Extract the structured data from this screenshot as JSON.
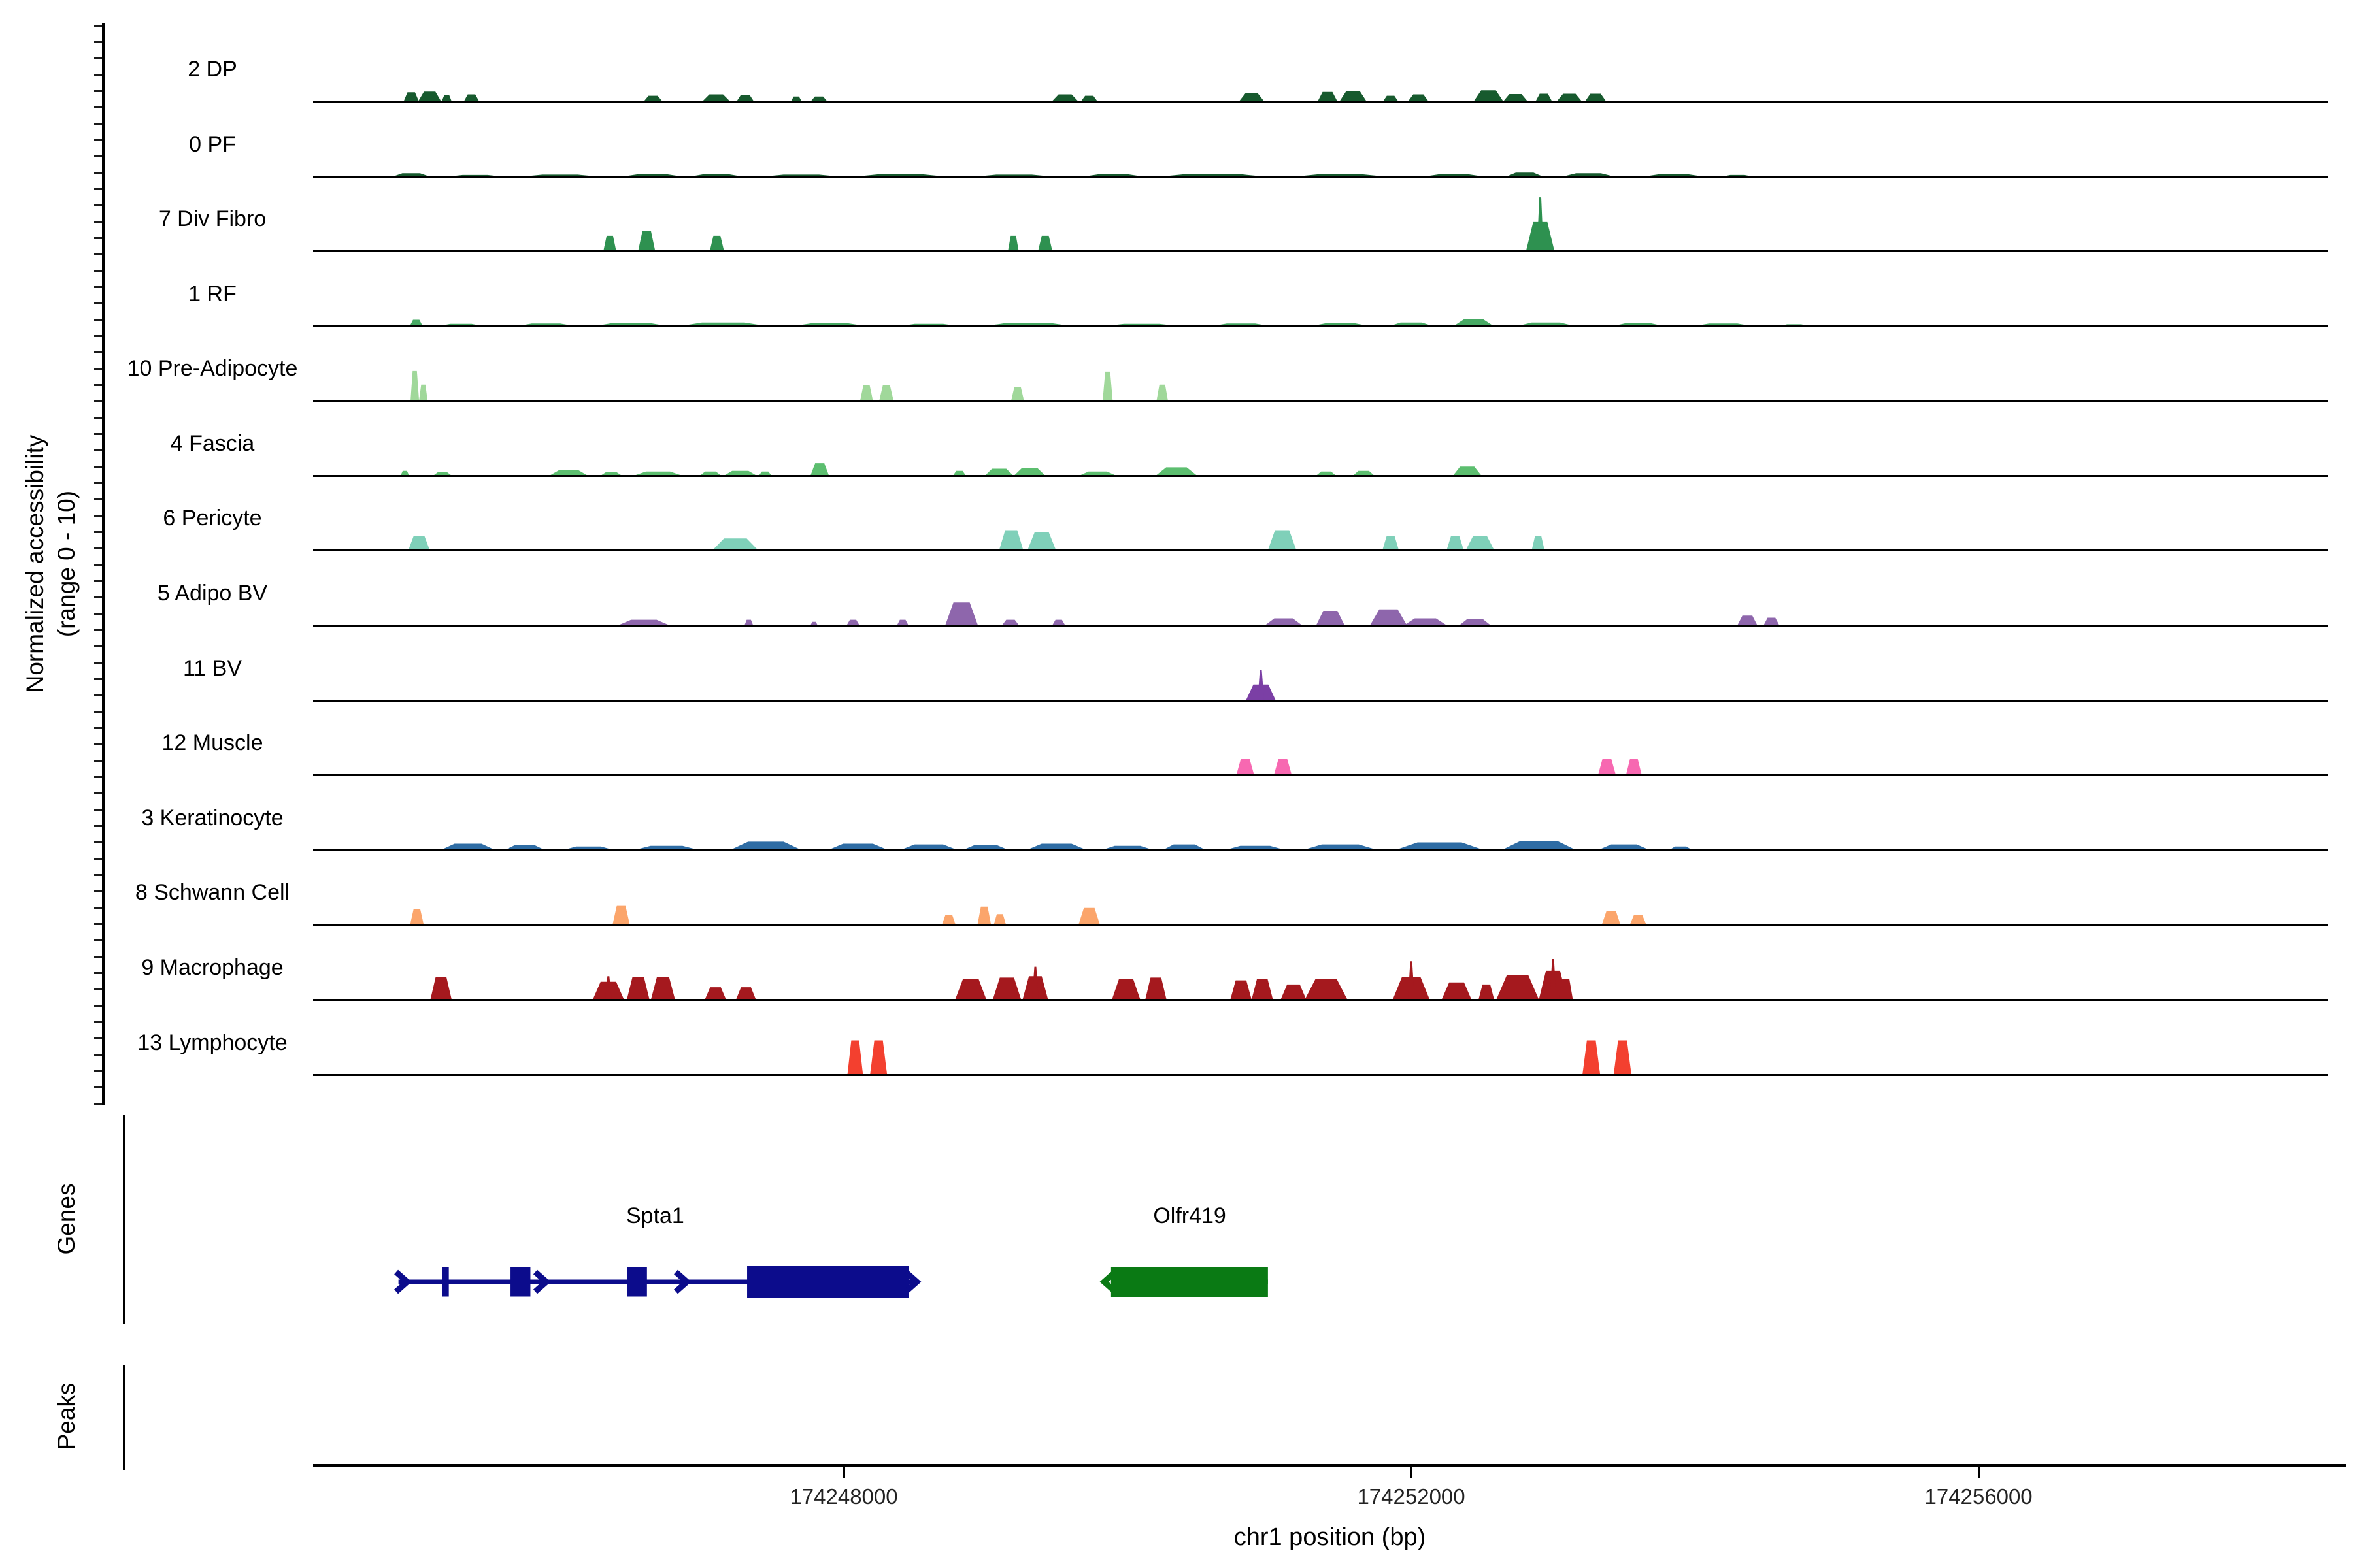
{
  "y_axis": {
    "label_line1": "Normalized accessibility",
    "label_line2": "(range 0 - 10)"
  },
  "x_axis": {
    "title": "chr1 position (bp)",
    "ticks": [
      {
        "bp": 174248000,
        "label": "174248000"
      },
      {
        "bp": 174252000,
        "label": "174252000"
      },
      {
        "bp": 174256000,
        "label": "174256000"
      }
    ]
  },
  "side_labels": {
    "genes": "Genes",
    "peaks": "Peaks"
  },
  "chart_data": {
    "type": "area",
    "title": "",
    "xlabel": "chr1 position (bp)",
    "ylabel": "Normalized accessibility (range 0 - 10)",
    "x_range_bp": [
      174244258,
      174258465
    ],
    "x_tick_values": [
      174248000,
      174252000,
      174256000
    ],
    "y_range_per_track": [
      0,
      10
    ],
    "grid": false,
    "legend_position": "none",
    "tracks": [
      {
        "label": "2 DP",
        "color": "#175A2E",
        "peaks": [
          [
            174244950,
            106,
            1.3
          ],
          [
            174245080,
            161,
            1.4
          ],
          [
            174245200,
            69,
            0.9
          ],
          [
            174245375,
            106,
            1.0
          ],
          [
            174246655,
            129,
            0.8
          ],
          [
            174247100,
            193,
            1.0
          ],
          [
            174247305,
            120,
            0.95
          ],
          [
            174247665,
            74,
            0.7
          ],
          [
            174247825,
            115,
            0.7
          ],
          [
            174249560,
            184,
            1.0
          ],
          [
            174249730,
            115,
            0.8
          ],
          [
            174250875,
            175,
            1.15
          ],
          [
            174251410,
            138,
            1.35
          ],
          [
            174251590,
            189,
            1.5
          ],
          [
            174251855,
            106,
            0.8
          ],
          [
            174252050,
            143,
            1.0
          ],
          [
            174252545,
            207,
            1.6
          ],
          [
            174252735,
            170,
            1.05
          ],
          [
            174252935,
            115,
            1.1
          ],
          [
            174253115,
            175,
            1.1
          ],
          [
            174253300,
            147,
            1.1
          ]
        ]
      },
      {
        "label": "0 PF",
        "color": "#175A2E",
        "peaks": [
          [
            174244950,
            250,
            0.45
          ],
          [
            174245400,
            350,
            0.2
          ],
          [
            174246000,
            500,
            0.25
          ],
          [
            174246650,
            400,
            0.3
          ],
          [
            174247100,
            350,
            0.3
          ],
          [
            174247700,
            500,
            0.25
          ],
          [
            174248400,
            600,
            0.3
          ],
          [
            174249200,
            500,
            0.25
          ],
          [
            174249900,
            400,
            0.3
          ],
          [
            174250600,
            700,
            0.35
          ],
          [
            174251500,
            600,
            0.3
          ],
          [
            174252300,
            400,
            0.3
          ],
          [
            174252800,
            250,
            0.55
          ],
          [
            174253250,
            350,
            0.45
          ],
          [
            174253850,
            400,
            0.3
          ],
          [
            174254300,
            200,
            0.2
          ]
        ]
      },
      {
        "label": "7 Div Fibro",
        "color": "#2E9150",
        "peaks": [
          [
            174246350,
            90,
            2.2
          ],
          [
            174246610,
            120,
            2.9
          ],
          [
            174247105,
            100,
            2.2
          ],
          [
            174249195,
            75,
            2.2
          ],
          [
            174249420,
            100,
            2.2
          ],
          [
            174252910,
            200,
            4.2,
            7.8
          ]
        ]
      },
      {
        "label": "1 RF",
        "color": "#46A963",
        "peaks": [
          [
            174244985,
            90,
            0.9
          ],
          [
            174245300,
            300,
            0.3
          ],
          [
            174245900,
            400,
            0.35
          ],
          [
            174246500,
            500,
            0.45
          ],
          [
            174247150,
            600,
            0.5
          ],
          [
            174247900,
            500,
            0.4
          ],
          [
            174248600,
            400,
            0.3
          ],
          [
            174249300,
            600,
            0.45
          ],
          [
            174250100,
            500,
            0.3
          ],
          [
            174250800,
            400,
            0.35
          ],
          [
            174251500,
            400,
            0.4
          ],
          [
            174252000,
            300,
            0.5
          ],
          [
            174252440,
            280,
            0.95
          ],
          [
            174252950,
            400,
            0.5
          ],
          [
            174253600,
            350,
            0.4
          ],
          [
            174254200,
            400,
            0.35
          ],
          [
            174254700,
            200,
            0.25
          ]
        ]
      },
      {
        "label": "10 Pre-Adipocyte",
        "color": "#A0D89A",
        "peaks": [
          [
            174244975,
            60,
            4.3
          ],
          [
            174245035,
            60,
            2.3
          ],
          [
            174248160,
            90,
            2.2
          ],
          [
            174248300,
            100,
            2.2
          ],
          [
            174249225,
            90,
            2.0
          ],
          [
            174249860,
            70,
            4.2
          ],
          [
            174250245,
            80,
            2.3
          ]
        ]
      },
      {
        "label": "4 Fascia",
        "color": "#5CBE6F",
        "peaks": [
          [
            174244905,
            60,
            0.7
          ],
          [
            174245170,
            130,
            0.5
          ],
          [
            174246060,
            270,
            0.8
          ],
          [
            174246360,
            150,
            0.5
          ],
          [
            174246690,
            340,
            0.6
          ],
          [
            174247060,
            150,
            0.6
          ],
          [
            174247270,
            230,
            0.7
          ],
          [
            174247445,
            90,
            0.6
          ],
          [
            174247830,
            130,
            1.8
          ],
          [
            174248815,
            90,
            0.7
          ],
          [
            174249095,
            200,
            1.0
          ],
          [
            174249310,
            220,
            1.1
          ],
          [
            174249790,
            260,
            0.6
          ],
          [
            174250345,
            290,
            1.2
          ],
          [
            174251400,
            140,
            0.6
          ],
          [
            174251665,
            150,
            0.7
          ],
          [
            174252395,
            200,
            1.3
          ]
        ]
      },
      {
        "label": "6 Pericyte",
        "color": "#7FD0B9",
        "peaks": [
          [
            174245005,
            150,
            2.1
          ],
          [
            174247235,
            320,
            1.7
          ],
          [
            174249180,
            170,
            2.9
          ],
          [
            174249395,
            200,
            2.6
          ],
          [
            174251090,
            200,
            2.9
          ],
          [
            174251855,
            115,
            2.0
          ],
          [
            174252310,
            120,
            2.0
          ],
          [
            174252485,
            200,
            2.0
          ],
          [
            174252895,
            90,
            2.0
          ]
        ]
      },
      {
        "label": "5 Adipo BV",
        "color": "#8E66AC",
        "peaks": [
          [
            174246590,
            360,
            0.8
          ],
          [
            174247330,
            60,
            0.8
          ],
          [
            174247790,
            50,
            0.5
          ],
          [
            174248065,
            90,
            0.8
          ],
          [
            174248415,
            80,
            0.8
          ],
          [
            174248830,
            230,
            3.3
          ],
          [
            174249175,
            120,
            0.8
          ],
          [
            174249515,
            90,
            0.8
          ],
          [
            174251100,
            260,
            1.0
          ],
          [
            174251430,
            200,
            2.1
          ],
          [
            174251840,
            260,
            2.3
          ],
          [
            174252100,
            300,
            1.0
          ],
          [
            174252450,
            220,
            0.9
          ],
          [
            174254370,
            140,
            1.4
          ],
          [
            174254540,
            110,
            1.1
          ]
        ]
      },
      {
        "label": "11 BV",
        "color": "#7B3FA5",
        "peaks": [
          [
            174250940,
            210,
            2.3,
            4.4
          ]
        ]
      },
      {
        "label": "12 Muscle",
        "color": "#F768B1",
        "peaks": [
          [
            174250830,
            125,
            2.3
          ],
          [
            174251095,
            125,
            2.3
          ],
          [
            174253380,
            125,
            2.3
          ],
          [
            174253570,
            110,
            2.3
          ]
        ]
      },
      {
        "label": "3 Keratinocyte",
        "color": "#2E6CA4",
        "peaks": [
          [
            174245350,
            380,
            0.9
          ],
          [
            174245750,
            280,
            0.7
          ],
          [
            174246200,
            350,
            0.5
          ],
          [
            174246750,
            450,
            0.6
          ],
          [
            174247450,
            500,
            1.2
          ],
          [
            174248100,
            420,
            0.9
          ],
          [
            174248600,
            400,
            0.8
          ],
          [
            174249000,
            320,
            0.7
          ],
          [
            174249500,
            420,
            0.9
          ],
          [
            174250000,
            360,
            0.6
          ],
          [
            174250400,
            300,
            0.8
          ],
          [
            174250900,
            420,
            0.6
          ],
          [
            174251500,
            520,
            0.8
          ],
          [
            174252200,
            620,
            1.1
          ],
          [
            174252900,
            520,
            1.3
          ],
          [
            174253500,
            360,
            0.8
          ],
          [
            174253900,
            160,
            0.5
          ]
        ]
      },
      {
        "label": "8 Schwann Cell",
        "color": "#FBA56B",
        "peaks": [
          [
            174244990,
            95,
            2.2
          ],
          [
            174246430,
            120,
            2.8
          ],
          [
            174248740,
            95,
            1.4
          ],
          [
            174248990,
            95,
            2.6
          ],
          [
            174249100,
            85,
            1.5
          ],
          [
            174249730,
            150,
            2.4
          ],
          [
            174253410,
            130,
            2.0
          ],
          [
            174253600,
            115,
            1.4
          ]
        ]
      },
      {
        "label": "9 Macrophage",
        "color": "#A5191E",
        "peaks": [
          [
            174245160,
            150,
            3.3
          ],
          [
            174246340,
            220,
            2.6,
            3.4
          ],
          [
            174246550,
            160,
            3.3
          ],
          [
            174246725,
            170,
            3.3
          ],
          [
            174247095,
            150,
            1.8
          ],
          [
            174247310,
            140,
            1.8
          ],
          [
            174248895,
            220,
            3.0
          ],
          [
            174249150,
            200,
            3.2
          ],
          [
            174249350,
            180,
            3.4,
            4.8
          ],
          [
            174249990,
            200,
            3.0
          ],
          [
            174250200,
            150,
            3.2
          ],
          [
            174250800,
            150,
            2.8
          ],
          [
            174250950,
            150,
            3.0
          ],
          [
            174251170,
            180,
            2.2
          ],
          [
            174251400,
            300,
            3.0
          ],
          [
            174252000,
            260,
            3.3,
            5.6
          ],
          [
            174252320,
            210,
            2.5
          ],
          [
            174252530,
            110,
            2.2
          ],
          [
            174252750,
            300,
            3.6
          ],
          [
            174253000,
            200,
            4.2,
            5.9
          ],
          [
            174253090,
            100,
            3.0
          ]
        ]
      },
      {
        "label": "13 Lymphocyte",
        "color": "#F3402F",
        "peaks": [
          [
            174248080,
            110,
            5.0
          ],
          [
            174248245,
            120,
            5.0
          ],
          [
            174253270,
            125,
            5.0
          ],
          [
            174253490,
            125,
            5.0
          ]
        ]
      }
    ],
    "genes": [
      {
        "name": "Spta1",
        "color": "#0C0C8C",
        "strand": "+",
        "start": 174244860,
        "end": 174248485,
        "label_bp": 174246670,
        "exons": [
          [
            174245170,
            174245215,
            45
          ],
          [
            174245650,
            174245790,
            45
          ],
          [
            174246474,
            174246612,
            45
          ],
          [
            174247318,
            174248460,
            50
          ]
        ],
        "chevrons": [
          174244885,
          174245866,
          174246857,
          174248478
        ]
      },
      {
        "name": "Olfr419",
        "color": "#0A7A14",
        "strand": "-",
        "start": 174249884,
        "end": 174250990,
        "label_bp": 174250438,
        "exons": [
          [
            174249884,
            174250990,
            46
          ]
        ],
        "chevrons": [
          174249872
        ]
      }
    ],
    "peaks_track": {
      "items": []
    }
  }
}
